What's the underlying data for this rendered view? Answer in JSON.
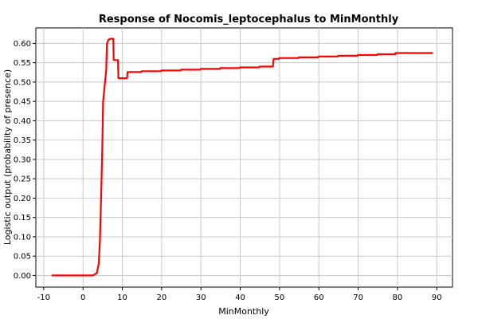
{
  "chart_data": {
    "type": "line",
    "title": "Response of Nocomis_leptocephalus to MinMonthly",
    "xlabel": "MinMonthly",
    "ylabel": "Logistic output (probability of presence)",
    "xlim": [
      -12,
      94
    ],
    "ylim": [
      -0.03,
      0.64
    ],
    "x_ticks": [
      -10,
      0,
      10,
      20,
      30,
      40,
      50,
      60,
      70,
      80,
      90
    ],
    "y_ticks": [
      0.0,
      0.05,
      0.1,
      0.15,
      0.2,
      0.25,
      0.3,
      0.35,
      0.4,
      0.45,
      0.5,
      0.55,
      0.6
    ],
    "grid": true,
    "line_color": "#ff0000",
    "series": [
      {
        "x": [
          -8,
          0,
          2.5,
          3.5,
          4,
          4.3,
          4.6,
          4.9,
          5.1,
          5.3,
          5.6,
          5.9,
          6.1,
          6.5,
          7.0,
          7.7,
          7.8,
          8.9,
          9.0,
          11.2,
          11.3,
          14.8,
          14.9,
          19.8,
          19.9,
          24.8,
          24.9,
          29.8,
          29.9,
          34.8,
          34.9,
          39.8,
          39.9,
          44.8,
          44.9,
          48.3,
          48.5,
          49.8,
          49.9,
          54.8,
          54.9,
          59.8,
          59.9,
          64.8,
          64.9,
          69.8,
          69.9,
          74.8,
          74.9,
          79.4,
          79.5,
          89
        ],
        "y": [
          0.0,
          0.0,
          0.0,
          0.006,
          0.03,
          0.09,
          0.2,
          0.33,
          0.45,
          0.47,
          0.5,
          0.53,
          0.6,
          0.61,
          0.612,
          0.612,
          0.557,
          0.557,
          0.51,
          0.51,
          0.526,
          0.526,
          0.528,
          0.528,
          0.53,
          0.53,
          0.532,
          0.532,
          0.534,
          0.534,
          0.536,
          0.536,
          0.538,
          0.538,
          0.54,
          0.54,
          0.56,
          0.56,
          0.562,
          0.562,
          0.564,
          0.564,
          0.566,
          0.566,
          0.568,
          0.568,
          0.57,
          0.57,
          0.572,
          0.572,
          0.575,
          0.575
        ]
      }
    ]
  }
}
